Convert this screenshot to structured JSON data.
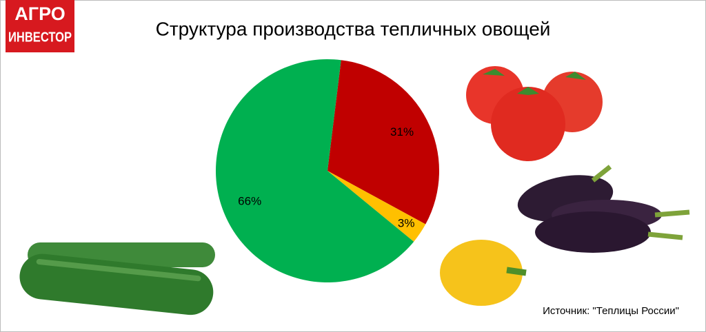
{
  "logo": {
    "line1": "АГРО",
    "line2": "ИНВЕСТОР"
  },
  "chart_data": {
    "type": "pie",
    "title": "Структура производства тепличных овощей",
    "categories": [
      null,
      null,
      null
    ],
    "values": [
      31,
      3,
      66
    ],
    "value_labels": [
      "31%",
      "3%",
      "66%"
    ],
    "colors": [
      "#c00000",
      "#ffc000",
      "#00b050"
    ]
  },
  "source": "Источник: \"Теплицы России\""
}
